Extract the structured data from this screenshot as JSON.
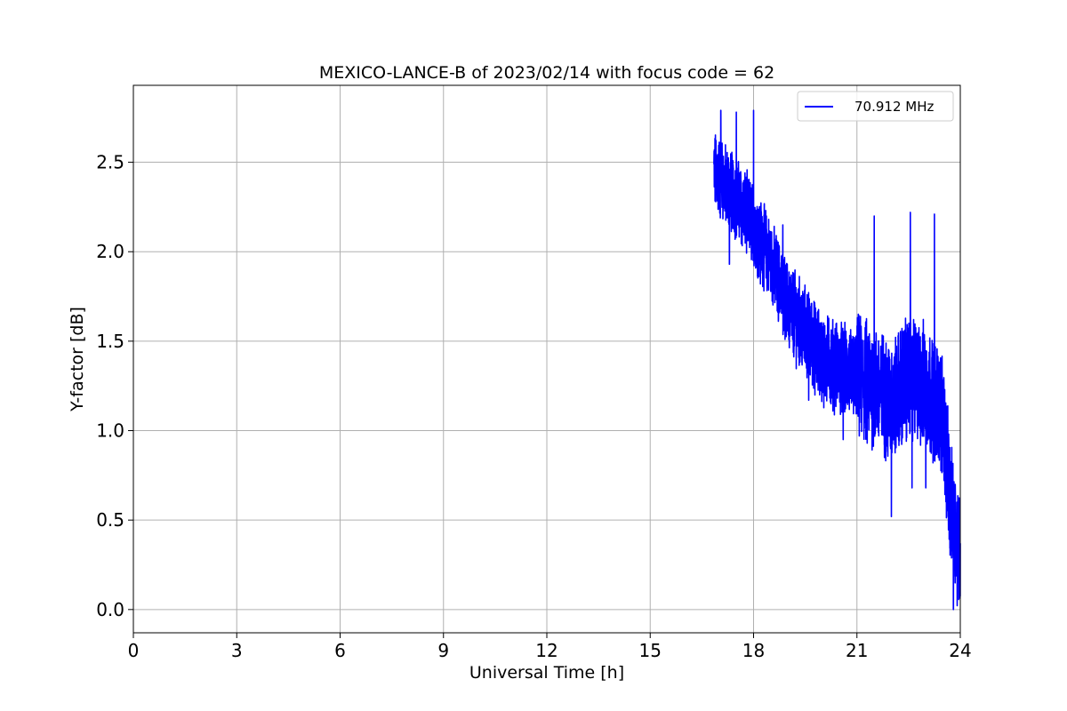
{
  "chart_data": {
    "type": "line",
    "title": "MEXICO-LANCE-B of 2023/02/14 with focus code = 62",
    "xlabel": "Universal Time [h]",
    "ylabel": "Y-factor [dB]",
    "xlim": [
      0,
      24
    ],
    "ylim": [
      -0.13,
      2.93
    ],
    "xticks": [
      0,
      3,
      6,
      9,
      12,
      15,
      18,
      21,
      24
    ],
    "yticks": [
      0.0,
      0.5,
      1.0,
      1.5,
      2.0,
      2.5
    ],
    "xtick_labels": [
      "0",
      "3",
      "6",
      "9",
      "12",
      "15",
      "18",
      "21",
      "24"
    ],
    "ytick_labels": [
      "0.0",
      "0.5",
      "1.0",
      "1.5",
      "2.0",
      "2.5"
    ],
    "grid": true,
    "legend_position": "top-right",
    "color": "#0000ff",
    "series": [
      {
        "name": "70.912 MHz",
        "x_start": 16.85,
        "x_end": 24.0,
        "note_trend_points": [
          [
            16.85,
            2.45
          ],
          [
            17.5,
            2.3
          ],
          [
            18.0,
            2.15
          ],
          [
            18.5,
            1.95
          ],
          [
            19.0,
            1.7
          ],
          [
            19.5,
            1.55
          ],
          [
            20.0,
            1.4
          ],
          [
            20.5,
            1.35
          ],
          [
            21.0,
            1.3
          ],
          [
            21.5,
            1.25
          ],
          [
            22.0,
            1.15
          ],
          [
            22.5,
            1.3
          ],
          [
            23.0,
            1.25
          ],
          [
            23.5,
            1.1
          ],
          [
            23.7,
            0.6
          ],
          [
            24.0,
            0.3
          ]
        ],
        "peaks": [
          [
            17.05,
            2.79
          ],
          [
            17.5,
            2.78
          ],
          [
            18.0,
            2.79
          ],
          [
            18.85,
            2.15
          ],
          [
            21.5,
            2.2
          ],
          [
            22.55,
            2.22
          ],
          [
            23.25,
            2.21
          ]
        ],
        "troughs": [
          [
            17.3,
            1.93
          ],
          [
            18.2,
            1.82
          ],
          [
            19.6,
            1.17
          ],
          [
            20.6,
            0.95
          ],
          [
            21.3,
            0.93
          ],
          [
            22.0,
            0.52
          ],
          [
            22.6,
            0.68
          ],
          [
            23.0,
            0.68
          ],
          [
            23.8,
            0.0
          ]
        ]
      }
    ]
  }
}
